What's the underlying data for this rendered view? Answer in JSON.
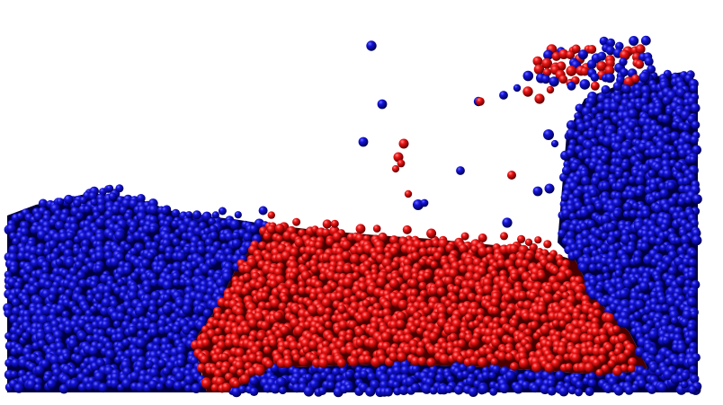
{
  "scene": {
    "description_visible_text": "",
    "background_color": "#ffffff",
    "fluids": [
      {
        "name": "blue",
        "color": "#0b0bb8"
      },
      {
        "name": "red",
        "color": "#e01010"
      }
    ]
  }
}
